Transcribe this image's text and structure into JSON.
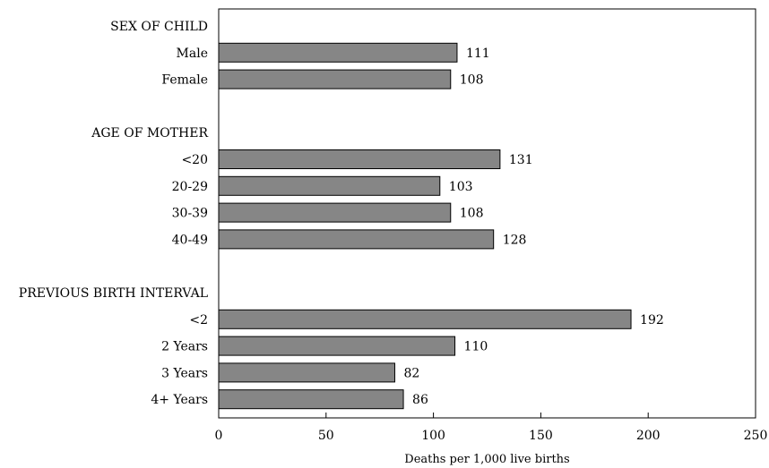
{
  "chart_data": {
    "type": "bar",
    "orientation": "horizontal",
    "xlabel": "Deaths per 1,000 live births",
    "xlim": [
      0,
      250
    ],
    "xticks": [
      0,
      50,
      100,
      150,
      200,
      250
    ],
    "grid": false,
    "legend": "none",
    "bar_color": "#868686",
    "groups": [
      {
        "name": "SEX OF CHILD",
        "categories": [
          "Male",
          "Female"
        ],
        "values": [
          111,
          108
        ]
      },
      {
        "name": "AGE OF MOTHER",
        "categories": [
          "<20",
          "20-29",
          "30-39",
          "40-49"
        ],
        "values": [
          131,
          103,
          108,
          128
        ]
      },
      {
        "name": "PREVIOUS BIRTH INTERVAL",
        "categories": [
          "<2",
          "2 Years",
          "3 Years",
          "4+ Years"
        ],
        "values": [
          192,
          110,
          82,
          86
        ]
      }
    ]
  }
}
